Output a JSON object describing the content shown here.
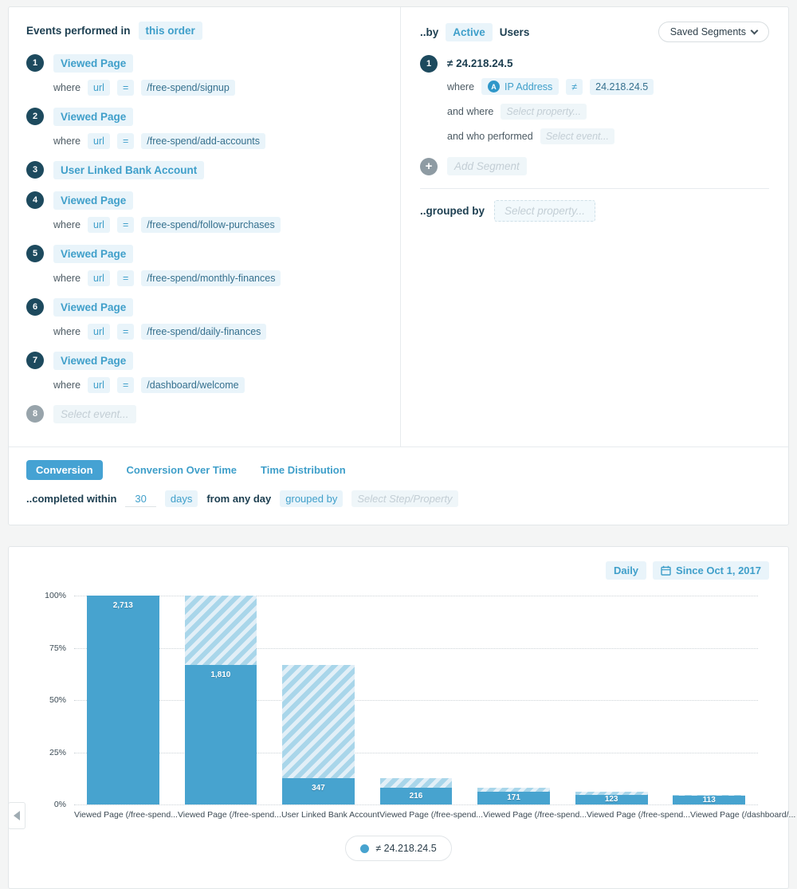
{
  "left_panel": {
    "title": "Events performed in",
    "order_label": "this order",
    "where_word": "where",
    "steps": [
      {
        "num": "1",
        "event": "Viewed Page",
        "prop": "url",
        "op": "=",
        "value": "/free-spend/signup"
      },
      {
        "num": "2",
        "event": "Viewed Page",
        "prop": "url",
        "op": "=",
        "value": "/free-spend/add-accounts"
      },
      {
        "num": "3",
        "event": "User Linked Bank Account"
      },
      {
        "num": "4",
        "event": "Viewed Page",
        "prop": "url",
        "op": "=",
        "value": "/free-spend/follow-purchases"
      },
      {
        "num": "5",
        "event": "Viewed Page",
        "prop": "url",
        "op": "=",
        "value": "/free-spend/monthly-finances"
      },
      {
        "num": "6",
        "event": "Viewed Page",
        "prop": "url",
        "op": "=",
        "value": "/free-spend/daily-finances"
      },
      {
        "num": "7",
        "event": "Viewed Page",
        "prop": "url",
        "op": "=",
        "value": "/dashboard/welcome"
      },
      {
        "num": "8",
        "placeholder": "Select event..."
      }
    ]
  },
  "right_panel": {
    "by_prefix": "..by",
    "by_mode": "Active",
    "by_suffix": "Users",
    "saved_segments_label": "Saved Segments",
    "segment": {
      "num": "1",
      "title": "≠ 24.218.24.5",
      "where_label": "where",
      "property_icon": "A",
      "property_chip": "IP Address",
      "op_chip": "≠",
      "value_chip": "24.218.24.5",
      "and_where_label": "and where",
      "and_where_placeholder": "Select property...",
      "who_label": "and who performed",
      "who_placeholder": "Select event..."
    },
    "add_segment_label": "Add Segment",
    "grouped_by_label": "..grouped by",
    "grouped_by_placeholder": "Select property..."
  },
  "tabs": {
    "items": [
      {
        "label": "Conversion",
        "active": true
      },
      {
        "label": "Conversion Over Time",
        "active": false
      },
      {
        "label": "Time Distribution",
        "active": false
      }
    ],
    "completed_within": "..completed within",
    "days_value": "30",
    "days_unit": "days",
    "from_any_day": "from any day",
    "grouped_by": "grouped by",
    "grouped_by_placeholder": "Select Step/Property"
  },
  "chart_controls": {
    "granularity": "Daily",
    "date_range": "Since Oct 1, 2017"
  },
  "chart_data": {
    "type": "bar",
    "subtype": "funnel-conversion",
    "categories": [
      "Viewed Page (/free-spend...",
      "Viewed Page (/free-spend...",
      "User Linked Bank Account",
      "Viewed Page (/free-spend...",
      "Viewed Page (/free-spend...",
      "Viewed Page (/free-spend...",
      "Viewed Page (/dashboard/..."
    ],
    "values": [
      2713,
      1810,
      347,
      216,
      171,
      123,
      113
    ],
    "value_labels": [
      "2,713",
      "1,810",
      "347",
      "216",
      "171",
      "123",
      "113"
    ],
    "percent_of_first": [
      100,
      66.7,
      12.8,
      8.0,
      6.3,
      4.5,
      4.2
    ],
    "y_ticks": [
      "100%",
      "75%",
      "50%",
      "25%",
      "0%"
    ],
    "ylim": [
      0,
      100
    ],
    "grid": "dotted-horizontal",
    "series_name": "≠ 24.218.24.5",
    "bar_color": "#47a3cf",
    "hatch_colors": [
      "#a9d6ea",
      "#e2eff7"
    ],
    "legend_position": "bottom"
  }
}
